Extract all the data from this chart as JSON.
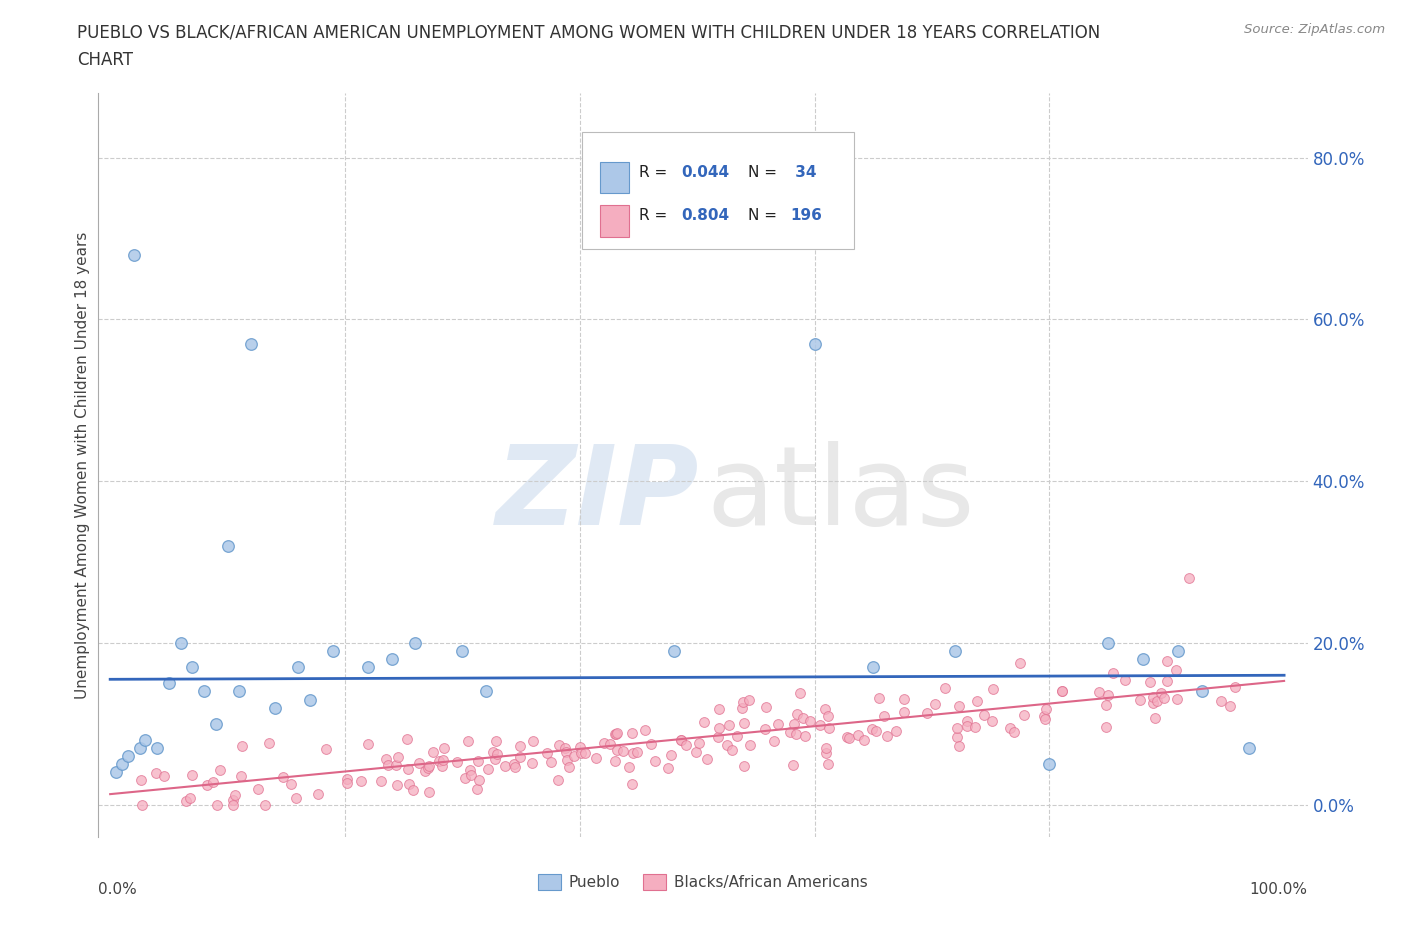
{
  "title_line1": "PUEBLO VS BLACK/AFRICAN AMERICAN UNEMPLOYMENT AMONG WOMEN WITH CHILDREN UNDER 18 YEARS CORRELATION",
  "title_line2": "CHART",
  "source_text": "Source: ZipAtlas.com",
  "ylabel": "Unemployment Among Women with Children Under 18 years",
  "pueblo_color": "#adc8e8",
  "pueblo_edge_color": "#6699cc",
  "black_color": "#f5aec0",
  "black_edge_color": "#e07090",
  "trend_pueblo_color": "#3366bb",
  "trend_black_color": "#dd6688",
  "ytick_labels": [
    "0.0%",
    "20.0%",
    "40.0%",
    "60.0%",
    "80.0%"
  ],
  "ytick_values": [
    0.0,
    0.2,
    0.4,
    0.6,
    0.8
  ],
  "legend_label_pueblo": "Pueblo",
  "legend_label_black": "Blacks/African Americans",
  "legend_color_text": "#3366bb",
  "grid_color": "#cccccc",
  "watermark_zip_color": "#c8d8ec",
  "watermark_atlas_color": "#cccccc"
}
